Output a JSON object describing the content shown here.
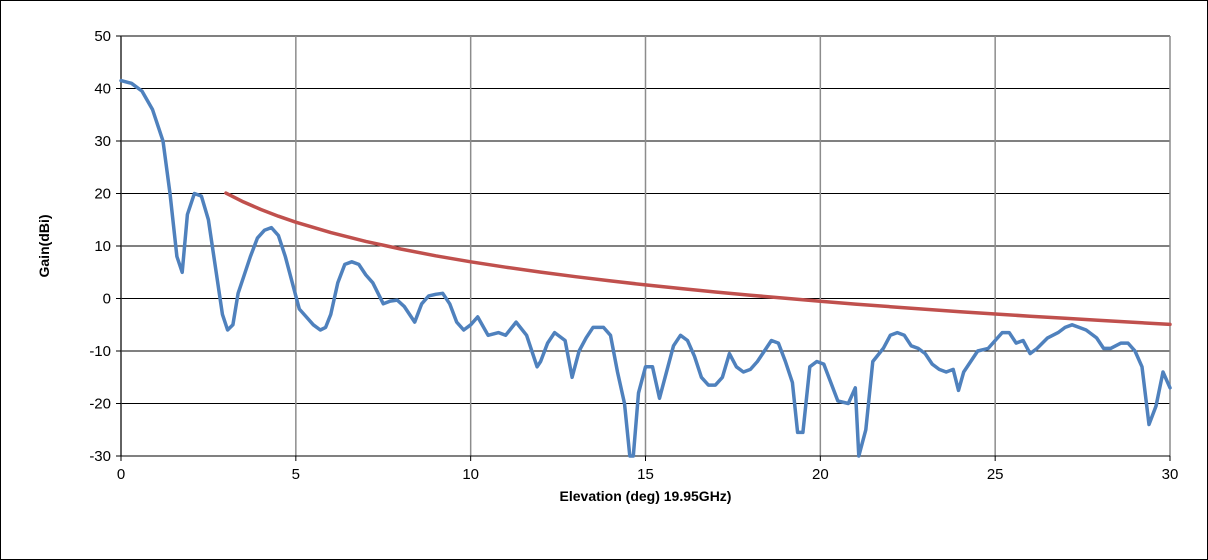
{
  "chart_data": {
    "type": "line",
    "title": "",
    "xlabel": "Elevation (deg) 19.95GHz)",
    "ylabel": "Gain(dBi)",
    "xlim": [
      0,
      30
    ],
    "ylim": [
      -30,
      50
    ],
    "xticks": [
      0,
      5,
      10,
      15,
      20,
      25,
      30
    ],
    "yticks": [
      -30,
      -20,
      -10,
      0,
      10,
      20,
      30,
      40,
      50
    ],
    "grid": true,
    "legend": "none",
    "series": [
      {
        "color": "#4f81bd",
        "x": [
          0,
          0.3,
          0.6,
          0.9,
          1.2,
          1.4,
          1.6,
          1.75,
          1.9,
          2.1,
          2.3,
          2.5,
          2.7,
          2.9,
          3.05,
          3.2,
          3.35,
          3.5,
          3.7,
          3.9,
          4.1,
          4.3,
          4.5,
          4.7,
          4.9,
          5.1,
          5.3,
          5.5,
          5.7,
          5.85,
          6.0,
          6.2,
          6.4,
          6.6,
          6.8,
          7.0,
          7.2,
          7.5,
          7.7,
          7.9,
          8.1,
          8.3,
          8.4,
          8.6,
          8.8,
          9.0,
          9.2,
          9.4,
          9.6,
          9.8,
          10.0,
          10.2,
          10.5,
          10.8,
          11.0,
          11.3,
          11.6,
          11.9,
          12.0,
          12.2,
          12.4,
          12.7,
          12.9,
          13.1,
          13.3,
          13.5,
          13.8,
          14.0,
          14.2,
          14.4,
          14.55,
          14.65,
          14.8,
          15.0,
          15.2,
          15.4,
          15.6,
          15.8,
          16.0,
          16.2,
          16.4,
          16.6,
          16.8,
          17.0,
          17.2,
          17.4,
          17.6,
          17.8,
          18.0,
          18.2,
          18.4,
          18.6,
          18.8,
          19.0,
          19.2,
          19.35,
          19.5,
          19.7,
          19.9,
          20.1,
          20.3,
          20.5,
          20.8,
          21.0,
          21.1,
          21.3,
          21.5,
          21.8,
          22.0,
          22.2,
          22.4,
          22.6,
          22.8,
          23.0,
          23.2,
          23.4,
          23.6,
          23.8,
          23.95,
          24.1,
          24.3,
          24.5,
          24.8,
          25.0,
          25.2,
          25.4,
          25.6,
          25.8,
          26.0,
          26.2,
          26.5,
          26.8,
          27.0,
          27.2,
          27.4,
          27.6,
          27.9,
          28.1,
          28.3,
          28.6,
          28.8,
          29.0,
          29.2,
          29.4,
          29.6,
          29.8,
          30.0
        ],
        "values": [
          41.5,
          41,
          39.5,
          36,
          30,
          20,
          8,
          5,
          16,
          20,
          19.5,
          15,
          6,
          -3,
          -6,
          -5,
          1,
          4,
          8,
          11.5,
          13,
          13.5,
          12,
          8,
          3,
          -2,
          -3.5,
          -5,
          -6,
          -5.5,
          -3,
          3,
          6.5,
          7,
          6.5,
          4.5,
          3,
          -1,
          -0.5,
          -0.3,
          -1.5,
          -3.5,
          -4.5,
          -1,
          0.5,
          0.8,
          1,
          -1,
          -4.5,
          -6,
          -5,
          -3.5,
          -7,
          -6.5,
          -7,
          -4.5,
          -7,
          -13,
          -12,
          -8.5,
          -6.5,
          -8,
          -15,
          -10,
          -7.5,
          -5.5,
          -5.5,
          -7,
          -14,
          -20,
          -30,
          -30,
          -18,
          -13,
          -13,
          -19,
          -14,
          -9,
          -7,
          -8,
          -11,
          -15,
          -16.5,
          -16.5,
          -15,
          -10.5,
          -13,
          -14,
          -13.5,
          -12,
          -10,
          -8,
          -8.5,
          -12,
          -16,
          -25.5,
          -25.5,
          -13,
          -12,
          -12.5,
          -16,
          -19.5,
          -20,
          -17,
          -30,
          -25,
          -12,
          -9.5,
          -7,
          -6.5,
          -7,
          -9,
          -9.5,
          -10.5,
          -12.5,
          -13.5,
          -14,
          -13.5,
          -17.5,
          -14,
          -12,
          -10,
          -9.5,
          -8,
          -6.5,
          -6.5,
          -8.5,
          -8,
          -10.5,
          -9.5,
          -7.5,
          -6.5,
          -5.5,
          -5,
          -5.5,
          -6,
          -7.5,
          -9.5,
          -9.5,
          -8.5,
          -8.5,
          -10,
          -13,
          -24,
          -20.5,
          -14,
          -17
        ]
      },
      {
        "color": "#c0504d",
        "x": [
          3,
          3.5,
          4,
          4.5,
          5,
          6,
          7,
          8,
          9,
          10,
          11,
          12,
          13,
          14,
          15,
          16,
          17,
          18,
          19,
          20,
          21,
          22,
          23,
          24,
          25,
          26,
          27,
          28,
          29,
          30
        ],
        "values": [
          20.07,
          18.4,
          16.95,
          15.67,
          14.53,
          12.55,
          10.87,
          9.42,
          8.14,
          7.0,
          5.97,
          5.02,
          4.15,
          3.35,
          2.6,
          1.9,
          1.24,
          0.62,
          0.03,
          -0.53,
          -1.06,
          -1.56,
          -2.04,
          -2.51,
          -2.95,
          -3.37,
          -3.78,
          -4.18,
          -4.56,
          -4.93
        ]
      }
    ]
  }
}
